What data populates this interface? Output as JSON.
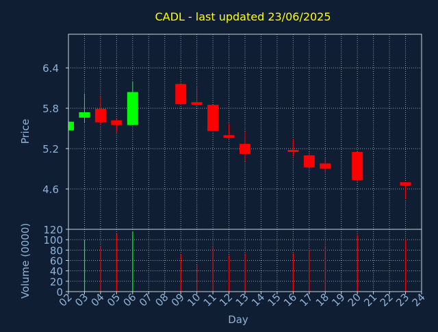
{
  "colors": {
    "background": "#0f1e33",
    "title": "#ffff00",
    "axis_text": "#8fb4d9",
    "frame": "#cfd6de",
    "grid": "#cfd6de",
    "up": "#00ff00",
    "down": "#ff0000"
  },
  "chart_data": [
    {
      "type": "candlestick",
      "title": "CADL - last updated 23/06/2025",
      "ylabel": "Price",
      "ylim": [
        4.0,
        6.9
      ],
      "yticks": [
        4.6,
        5.2,
        5.8,
        6.4
      ],
      "ytick_labels": [
        "4.6",
        "5.2",
        "5.8",
        "6.4"
      ],
      "grid": true,
      "candles": [
        {
          "day": 2,
          "open": 5.47,
          "high": 5.6,
          "low": 5.47,
          "close": 5.6
        },
        {
          "day": 3,
          "open": 5.66,
          "high": 6.02,
          "low": 5.58,
          "close": 5.74
        },
        {
          "day": 4,
          "open": 5.79,
          "high": 5.98,
          "low": 5.55,
          "close": 5.59
        },
        {
          "day": 5,
          "open": 5.62,
          "high": 5.64,
          "low": 5.44,
          "close": 5.55
        },
        {
          "day": 6,
          "open": 5.55,
          "high": 6.2,
          "low": 5.55,
          "close": 6.04
        },
        {
          "day": 9,
          "open": 6.16,
          "high": 6.16,
          "low": 5.85,
          "close": 5.86
        },
        {
          "day": 10,
          "open": 5.89,
          "high": 6.14,
          "low": 5.84,
          "close": 5.85
        },
        {
          "day": 11,
          "open": 5.85,
          "high": 5.85,
          "low": 5.45,
          "close": 5.46
        },
        {
          "day": 12,
          "open": 5.4,
          "high": 5.57,
          "low": 5.35,
          "close": 5.36
        },
        {
          "day": 13,
          "open": 5.27,
          "high": 5.45,
          "low": 5.01,
          "close": 5.12
        },
        {
          "day": 16,
          "open": 5.18,
          "high": 5.34,
          "low": 5.08,
          "close": 5.15
        },
        {
          "day": 17,
          "open": 5.1,
          "high": 5.14,
          "low": 4.92,
          "close": 4.92
        },
        {
          "day": 18,
          "open": 4.98,
          "high": 5.05,
          "low": 4.84,
          "close": 4.9
        },
        {
          "day": 20,
          "open": 5.15,
          "high": 5.15,
          "low": 4.71,
          "close": 4.73
        },
        {
          "day": 23,
          "open": 4.7,
          "high": 4.7,
          "low": 4.45,
          "close": 4.65
        }
      ]
    },
    {
      "type": "bar",
      "ylabel": "Volume (0000)",
      "xlabel": "Day",
      "ylim": [
        0,
        120
      ],
      "yticks": [
        0,
        20,
        40,
        60,
        80,
        100,
        120
      ],
      "ytick_labels": [
        "0",
        "20",
        "40",
        "60",
        "80",
        "100",
        "120"
      ],
      "x_ticks": [
        2,
        3,
        4,
        5,
        6,
        7,
        8,
        9,
        10,
        11,
        12,
        13,
        14,
        15,
        16,
        17,
        18,
        19,
        20,
        21,
        22,
        23,
        24
      ],
      "x_tick_labels": [
        "02",
        "03",
        "04",
        "05",
        "06",
        "07",
        "08",
        "09",
        "10",
        "11",
        "12",
        "13",
        "14",
        "15",
        "16",
        "17",
        "18",
        "19",
        "20",
        "21",
        "22",
        "23",
        "24"
      ],
      "grid": true,
      "volumes": [
        {
          "day": 3,
          "value": 100,
          "direction": "up"
        },
        {
          "day": 4,
          "value": 88,
          "direction": "down"
        },
        {
          "day": 5,
          "value": 111,
          "direction": "down"
        },
        {
          "day": 6,
          "value": 116,
          "direction": "up"
        },
        {
          "day": 9,
          "value": 72,
          "direction": "down"
        },
        {
          "day": 10,
          "value": 51,
          "direction": "down"
        },
        {
          "day": 11,
          "value": 86,
          "direction": "down"
        },
        {
          "day": 12,
          "value": 70,
          "direction": "down"
        },
        {
          "day": 13,
          "value": 74,
          "direction": "down"
        },
        {
          "day": 16,
          "value": 74,
          "direction": "down"
        },
        {
          "day": 17,
          "value": 80,
          "direction": "down"
        },
        {
          "day": 18,
          "value": 89,
          "direction": "down"
        },
        {
          "day": 20,
          "value": 109,
          "direction": "down"
        },
        {
          "day": 23,
          "value": 100,
          "direction": "down"
        }
      ]
    }
  ]
}
